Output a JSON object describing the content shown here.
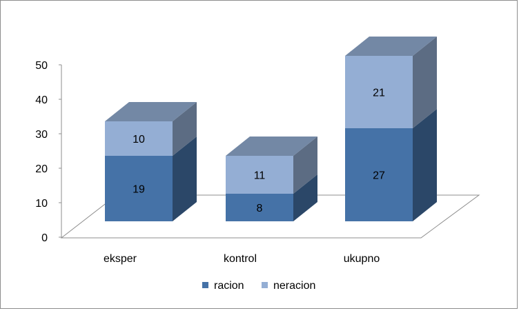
{
  "chart_data": {
    "type": "bar",
    "stacked": true,
    "three_d": true,
    "categories": [
      "eksper",
      "kontrol",
      "ukupno"
    ],
    "series": [
      {
        "name": "racion",
        "values": [
          19,
          8,
          27
        ],
        "color": "#4572a7"
      },
      {
        "name": "neracion",
        "values": [
          10,
          11,
          21
        ],
        "color": "#94aed4"
      }
    ],
    "ylim": [
      0,
      50
    ],
    "yticks": [
      0,
      10,
      20,
      30,
      40,
      50
    ],
    "grid": false,
    "legend_position": "bottom"
  }
}
